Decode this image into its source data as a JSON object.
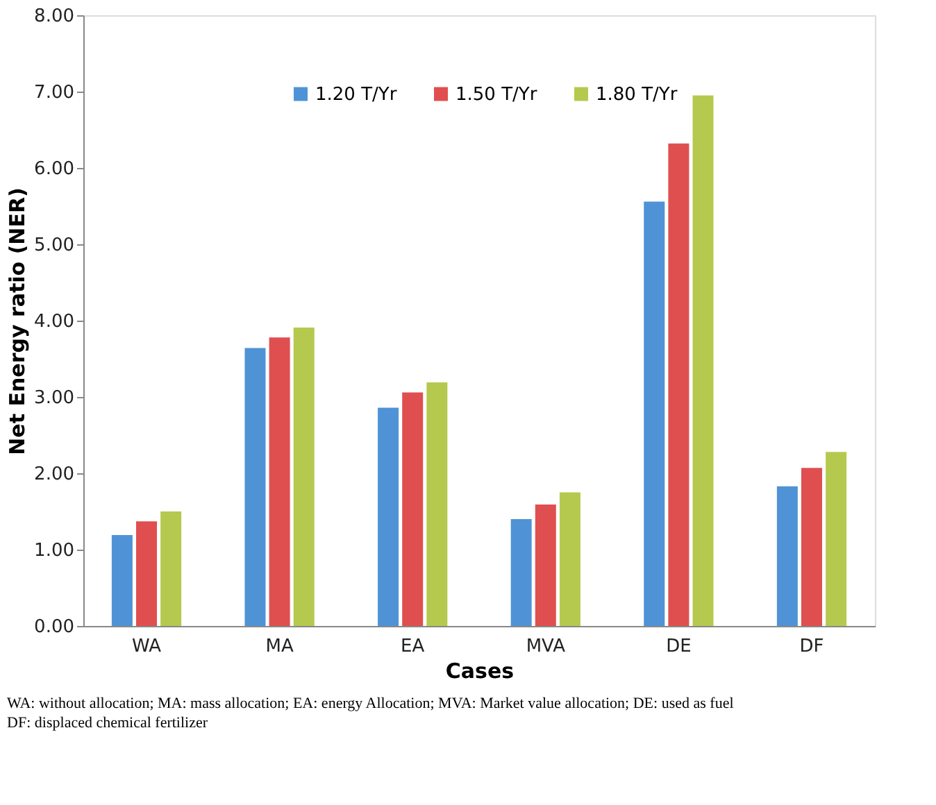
{
  "chart_data": {
    "type": "bar",
    "xlabel": "Cases",
    "ylabel": "Net Energy ratio (NER)",
    "categories": [
      "WA",
      "MA",
      "EA",
      "MVA",
      "DE",
      "DF"
    ],
    "series": [
      {
        "name": "1.20 T/Yr",
        "color": "#4f93d6",
        "values": [
          1.19,
          3.64,
          2.86,
          1.4,
          5.56,
          1.83
        ]
      },
      {
        "name": "1.50 T/Yr",
        "color": "#e04f4f",
        "values": [
          1.37,
          3.78,
          3.06,
          1.59,
          6.32,
          2.07
        ]
      },
      {
        "name": "1.80 T/Yr",
        "color": "#b5c94f",
        "values": [
          1.5,
          3.91,
          3.19,
          1.75,
          6.95,
          2.28
        ]
      }
    ],
    "ylim": [
      0,
      8
    ],
    "yticks": [
      {
        "value": 0,
        "label": "0.00"
      },
      {
        "value": 1,
        "label": "1.00"
      },
      {
        "value": 2,
        "label": "2.00"
      },
      {
        "value": 3,
        "label": "3.00"
      },
      {
        "value": 4,
        "label": "4.00"
      },
      {
        "value": 5,
        "label": "5.00"
      },
      {
        "value": 6,
        "label": "6.00"
      },
      {
        "value": 7,
        "label": "7.00"
      },
      {
        "value": 8,
        "label": "8.00"
      }
    ],
    "grid": false,
    "legend": "top",
    "annotations": [
      "WA: without allocation; MA: mass allocation; EA: energy Allocation; MVA: Market value allocation; DE:  used as fuel DF:  displaced chemical fertilizer"
    ]
  }
}
